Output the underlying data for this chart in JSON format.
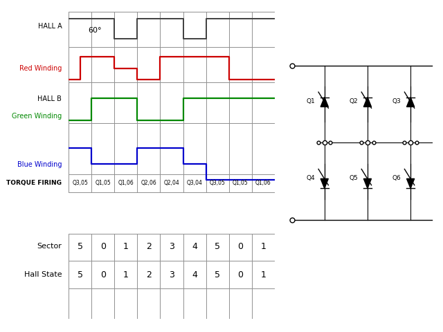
{
  "background_color": "#ffffff",
  "hall_a_color": "#404040",
  "red_color": "#cc0000",
  "green_color": "#008800",
  "blue_color": "#0000cc",
  "grid_color": "#909090",
  "torque_labels": [
    "Q3,05",
    "Q1,05",
    "Q1,06",
    "Q2,06",
    "Q2,04",
    "Q3,04",
    "Q3,05",
    "Q1,05",
    "Q1,06"
  ],
  "sector_values": [
    "5",
    "0",
    "1",
    "2",
    "3",
    "4",
    "5",
    "0",
    "1"
  ],
  "hall_state_values": [
    "5",
    "0",
    "1",
    "2",
    "3",
    "4",
    "5",
    "0",
    "1"
  ],
  "num_cols": 9,
  "hall_a": {
    "x": [
      0,
      2,
      2,
      3,
      3,
      5,
      5,
      6,
      6,
      9
    ],
    "y": [
      1,
      1,
      0,
      0,
      1,
      1,
      0,
      0,
      1,
      1
    ]
  },
  "red": {
    "x": [
      0,
      0.5,
      0.5,
      2,
      2,
      3,
      3,
      4,
      4,
      7,
      7,
      9
    ],
    "y": [
      0,
      0,
      1,
      1,
      0.5,
      0.5,
      0,
      0,
      1,
      1,
      0,
      0
    ]
  },
  "green": {
    "x": [
      0,
      1,
      1,
      3,
      3,
      5,
      5,
      9
    ],
    "y": [
      0,
      0,
      1,
      1,
      0,
      0,
      1,
      1
    ]
  },
  "blue": {
    "x": [
      0,
      1,
      1,
      3,
      3,
      5,
      5,
      6,
      6,
      9
    ],
    "y": [
      0.5,
      0.5,
      0,
      0,
      0.5,
      0.5,
      0,
      0,
      -0.5,
      -0.5
    ]
  }
}
